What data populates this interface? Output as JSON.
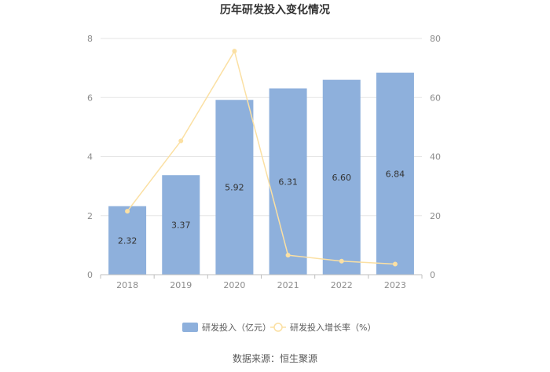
{
  "chart_data": {
    "type": "bar",
    "title": "历年研发投入变化情况",
    "categories": [
      "2018",
      "2019",
      "2020",
      "2021",
      "2022",
      "2023"
    ],
    "series": [
      {
        "name": "研发投入（亿元）",
        "type": "bar",
        "axis": "left",
        "color": "#8eb0dc",
        "values": [
          2.32,
          3.37,
          5.92,
          6.31,
          6.6,
          6.84
        ],
        "labels": [
          "2.32",
          "3.37",
          "5.92",
          "6.31",
          "6.60",
          "6.84"
        ]
      },
      {
        "name": "研发投入增长率（%）",
        "type": "line",
        "axis": "right",
        "color": "#fbe0a3",
        "values": [
          21.5,
          45.3,
          75.7,
          6.6,
          4.6,
          3.6
        ]
      }
    ],
    "y_left": {
      "min": 0,
      "max": 8,
      "ticks": [
        "0",
        "2",
        "4",
        "6",
        "8"
      ]
    },
    "y_right": {
      "min": 0,
      "max": 80,
      "ticks": [
        "0",
        "20",
        "40",
        "60",
        "80"
      ]
    },
    "grid": true,
    "legend_position": "bottom"
  },
  "source_text": "数据来源：恒生聚源"
}
